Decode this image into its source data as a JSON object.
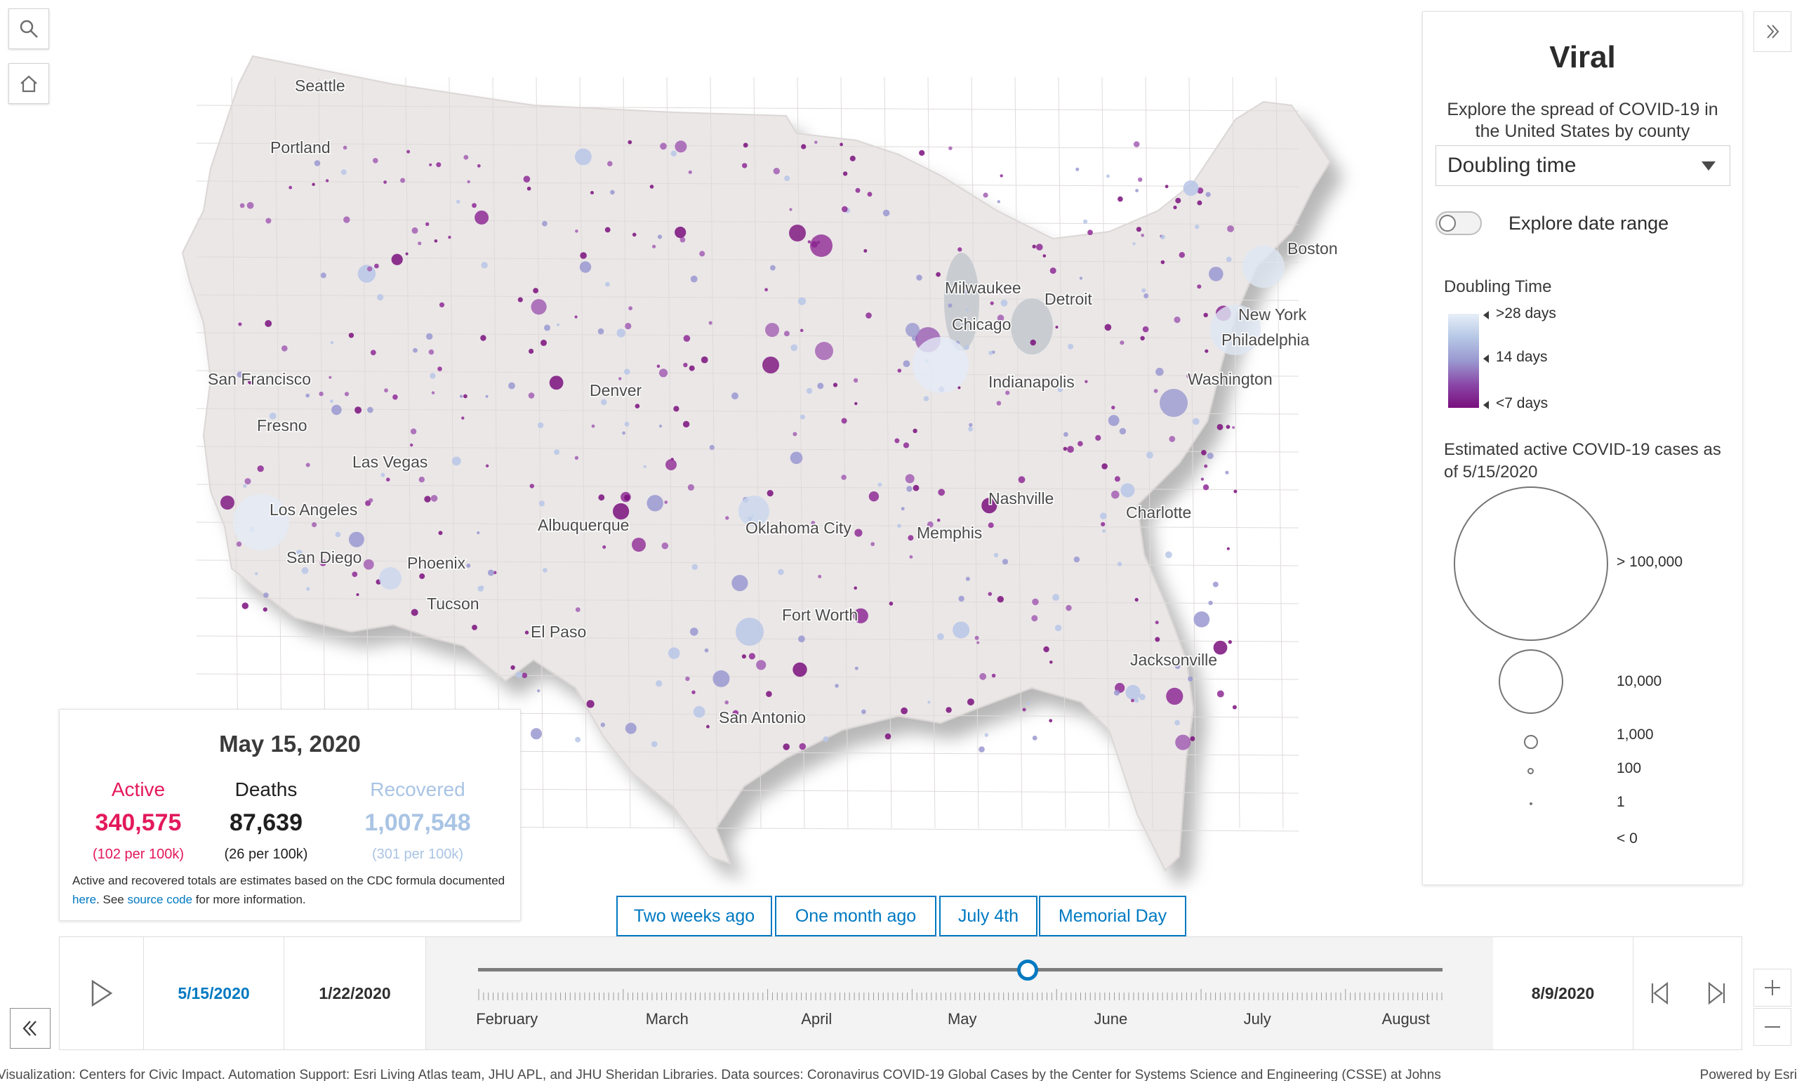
{
  "tools": {
    "search_icon": "search-icon",
    "home_icon": "home-icon"
  },
  "map": {
    "cities": [
      "Seattle",
      "Portland",
      "San Francisco",
      "Fresno",
      "Las Vegas",
      "Los Angeles",
      "San Diego",
      "Phoenix",
      "Tucson",
      "El Paso",
      "Albuquerque",
      "Denver",
      "Oklahoma City",
      "Fort Worth",
      "San Antonio",
      "Memphis",
      "Nashville",
      "Chicago",
      "Milwaukee",
      "Detroit",
      "Indianapolis",
      "Charlotte",
      "Jacksonville",
      "Washington",
      "Philadelphia",
      "New York",
      "Boston"
    ],
    "colors": {
      "land": "#ebe7e7",
      "land_stroke": "#d9d3d3",
      "low": "#7a0f7d",
      "mid": "#9a98d0",
      "high": "#c9d7ee"
    }
  },
  "panel": {
    "title": "Viral",
    "subtitle": "Explore the spread of COVID-19 in the United States by county",
    "metric_selected": "Doubling time",
    "toggle_label": "Explore date range",
    "toggle_on": false,
    "legend_title": "Doubling Time",
    "ramp_labels": [
      ">28 days",
      "14 days",
      "<7 days"
    ],
    "size_title": "Estimated active COVID-19 cases as of 5/15/2020",
    "size_labels": [
      "> 100,000",
      "10,000",
      "1,000",
      "100",
      "1",
      "< 0"
    ]
  },
  "stats": {
    "date": "May 15, 2020",
    "active": {
      "label": "Active",
      "value": "340,575",
      "rate": "(102 per 100k)",
      "color": "#e3195b"
    },
    "deaths": {
      "label": "Deaths",
      "value": "87,639",
      "rate": "(26 per 100k)",
      "color": "#1f1f1f"
    },
    "recovered": {
      "label": "Recovered",
      "value": "1,007,548",
      "rate": "(301 per 100k)",
      "color": "#a9c4e4"
    },
    "note_part1": "Active and recovered totals are estimates based on the CDC formula documented ",
    "note_link1": "here",
    "note_part2": ". See ",
    "note_link2": "source code",
    "note_part3": " for more information."
  },
  "presets": [
    "Two weeks ago",
    "One month ago",
    "July 4th",
    "Memorial Day"
  ],
  "timeline": {
    "current_date": "5/15/2020",
    "start_date": "1/22/2020",
    "end_date": "8/9/2020",
    "months": [
      "February",
      "March",
      "April",
      "May",
      "June",
      "July",
      "August"
    ],
    "progress": 0.57,
    "accent": "#0079c1"
  },
  "attribution": {
    "left": "Visualization: Centers for Civic Impact. Automation Support: Esri Living Atlas team, JHU APL, and JHU Sheridan Libraries. Data sources: Coronavirus COVID-19 Global Cases by the Center for Systems Science and Engineering (CSSE) at Johns",
    "right": "Powered by Esri"
  }
}
